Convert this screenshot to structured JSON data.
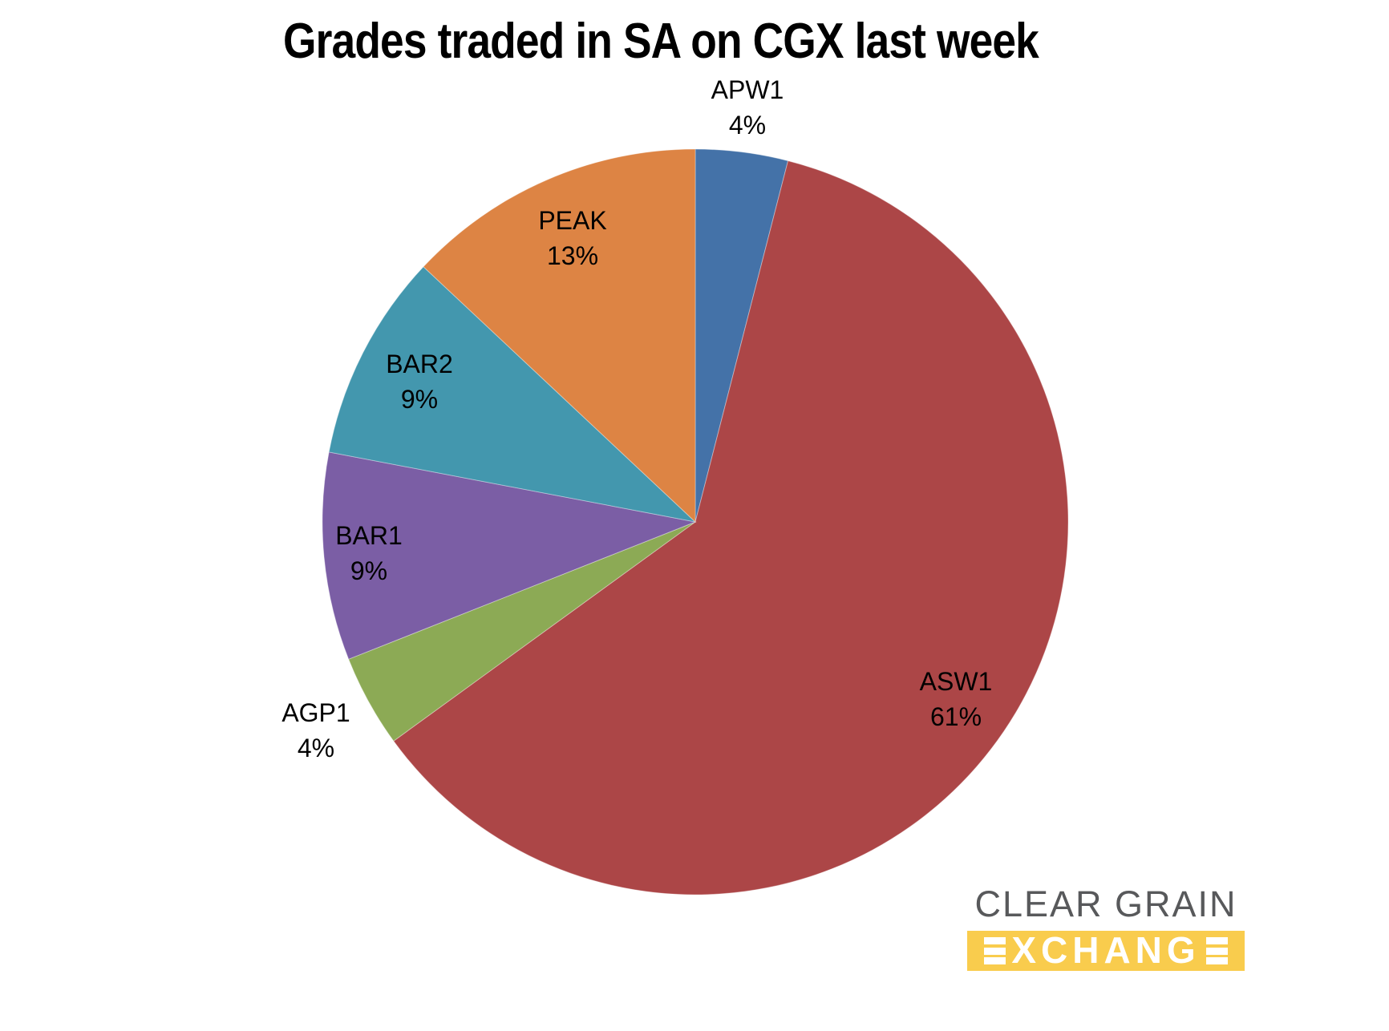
{
  "background_color": "#FFFFFF",
  "chart_data": {
    "type": "pie",
    "title": "Grades traded in SA on CGX last week",
    "value_unit": "%",
    "direction": "clockwise",
    "start_angle_deg": 0,
    "legend": "none",
    "data_label_style": "category name and percentage, two lines",
    "label_color": "#000000",
    "slices": [
      {
        "label": "APW1",
        "value": 4,
        "display": "4%",
        "color": "#4472A8",
        "label_placement": "outside"
      },
      {
        "label": "ASW1",
        "value": 61,
        "display": "61%",
        "color": "#AC4647",
        "label_placement": "inside"
      },
      {
        "label": "AGP1",
        "value": 4,
        "display": "4%",
        "color": "#8CAA55",
        "label_placement": "outside"
      },
      {
        "label": "BAR1",
        "value": 9,
        "display": "9%",
        "color": "#7B5EA5",
        "label_placement": "inside"
      },
      {
        "label": "BAR2",
        "value": 9,
        "display": "9%",
        "color": "#4397AE",
        "label_placement": "inside"
      },
      {
        "label": "PEAK",
        "value": 13,
        "display": "13%",
        "color": "#DD8444",
        "label_placement": "inside"
      }
    ]
  },
  "logo": {
    "line1": "CLEAR GRAIN",
    "line2": "EXCHANGE",
    "line2_mid": "XCHANG",
    "colors": {
      "text_gray": "#58595B",
      "band_yellow": "#F9CC4D",
      "letters_white": "#FFFFFF"
    }
  }
}
